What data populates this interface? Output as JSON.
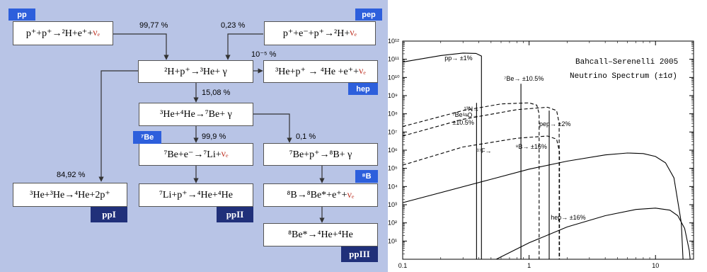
{
  "diagram": {
    "boxes": {
      "pp": "p⁺+p⁺→²H+e⁺+",
      "pep": "p⁺+e⁻+p⁺→²H+",
      "deut": "²H+p⁺→³He+ γ",
      "hep": "³He+p⁺ → ⁴He +e⁺+",
      "he34": "³He+⁴He→⁷Be+ γ",
      "be7e": "⁷Be+e⁻→⁷Li+",
      "be7p": "⁷Be+p⁺→⁸B+ γ",
      "he33": "³He+³He→⁴He+2p⁺",
      "li7p": "⁷Li+p⁺→⁴He+⁴He",
      "b8": "⁸B→⁸Be*+e⁺+",
      "be8": "⁸Be*→⁴He+⁴He"
    },
    "nu_e": "νₑ",
    "tags": {
      "pp": "pp",
      "pep": "pep",
      "hep": "hep",
      "be7": "⁷Be",
      "b8": "⁸B"
    },
    "chain_tags": {
      "ppI": "ppI",
      "ppII": "ppII",
      "ppIII": "ppIII"
    },
    "percentages": {
      "pp": "99,77 %",
      "pep": "0,23 %",
      "hep": "10⁻⁵ %",
      "he34": "15,08 %",
      "be7e": "99,9 %",
      "be7p": "0,1 %",
      "he33": "84,92 %"
    }
  },
  "chart_data": {
    "type": "line",
    "title": "Bahcall–Serenelli 2005",
    "subtitle": "Neutrino Spectrum (±1σ)",
    "xlabel": "",
    "ylabel": "",
    "x_scale": "log",
    "y_scale": "log",
    "xlim": [
      0.1,
      20
    ],
    "ylim": [
      1,
      1000000000000
    ],
    "x_tick_labels": [
      "0.1",
      "1",
      "10"
    ],
    "y_tick_labels": [
      "10¹",
      "10²",
      "10³",
      "10⁴",
      "10⁵",
      "10⁶",
      "10⁷",
      "10⁸",
      "10⁹",
      "10¹⁰",
      "10¹¹",
      "10¹²"
    ],
    "series": [
      {
        "label": "pp→  ±1%",
        "style": "solid",
        "x": [
          0.1,
          0.2,
          0.3,
          0.38,
          0.42,
          0.42
        ],
        "y": [
          70000000000,
          160000000000,
          220000000000,
          210000000000,
          150000000000,
          1
        ]
      },
      {
        "label": "¹³N→",
        "style": "dashed",
        "x": [
          0.1,
          0.3,
          0.6,
          1.0,
          1.15,
          1.2,
          1.2
        ],
        "y": [
          20000000,
          150000000,
          350000000,
          400000000,
          300000000,
          100000000,
          1
        ]
      },
      {
        "label": "¹⁵O→",
        "style": "dashed",
        "x": [
          0.1,
          0.3,
          0.8,
          1.4,
          1.65,
          1.73,
          1.73
        ],
        "y": [
          6000000,
          50000000,
          170000000,
          230000000,
          150000000,
          30000000,
          1
        ]
      },
      {
        "label": "¹⁷F→",
        "style": "dashed",
        "x": [
          0.1,
          0.3,
          0.8,
          1.4,
          1.65,
          1.74,
          1.74
        ],
        "y": [
          150000,
          1500000,
          4500000,
          6000000,
          4000000,
          800000,
          1
        ]
      },
      {
        "label": "⁸B→   ±16%",
        "style": "solid",
        "x": [
          0.1,
          0.5,
          1.0,
          2.0,
          4.0,
          6.0,
          8.0,
          10.0,
          12.0,
          14.0,
          16.0,
          16.5
        ],
        "y": [
          1300,
          25000,
          90000,
          250000,
          550000,
          700000,
          650000,
          450000,
          200000,
          30000,
          100,
          1
        ]
      },
      {
        "label": "hep→   ±16%",
        "style": "solid",
        "x": [
          0.55,
          1.0,
          2.0,
          4.0,
          7.0,
          10.0,
          13.0,
          15.0,
          17.0,
          18.5,
          18.8
        ],
        "y": [
          1,
          8,
          60,
          250,
          550,
          650,
          500,
          250,
          50,
          3,
          1
        ]
      }
    ],
    "lines": [
      {
        "label": "⁷Be→  ±10.5%",
        "x": 0.862,
        "y": 4500000000
      },
      {
        "label": "⁷Be→\n±10.5%",
        "x": 0.384,
        "y": 400000000
      },
      {
        "label": "pep→  ±2%",
        "x": 1.442,
        "y": 150000000
      }
    ]
  }
}
